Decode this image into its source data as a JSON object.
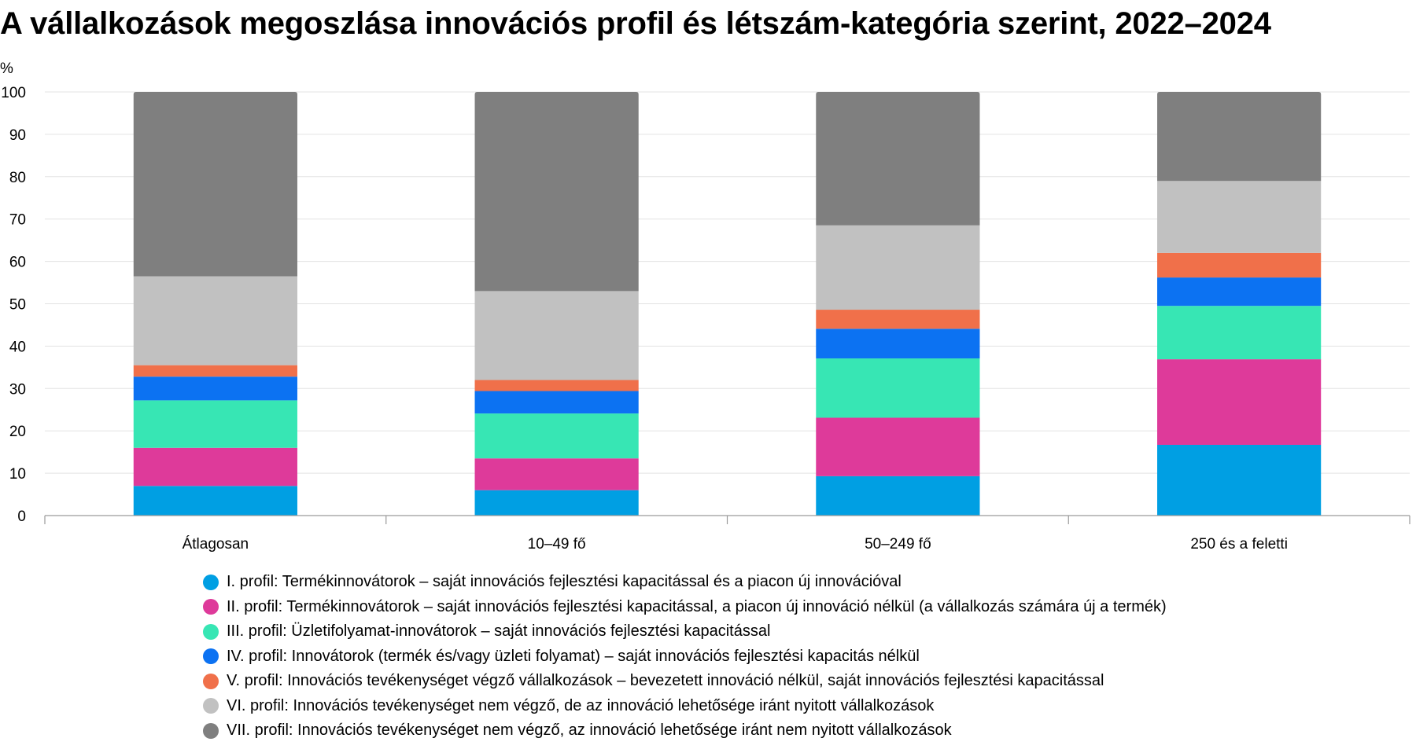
{
  "chart_data": {
    "type": "bar",
    "stacked": true,
    "title": "A vállalkozások megoszlása innovációs profil és létszám-kategória szerint, 2022–2024",
    "ylabel": "%",
    "xlabel": "",
    "ylim": [
      0,
      100
    ],
    "yticks": [
      "0",
      "10",
      "20",
      "30",
      "40",
      "50",
      "60",
      "70",
      "80",
      "90",
      "100"
    ],
    "grid": true,
    "legend_position": "bottom",
    "categories": [
      "Átlagosan",
      "10–49 fő",
      "50–249 fő",
      "250 és a feletti"
    ],
    "series": [
      {
        "name": "I. profil: Termékinnovátorok – saját innovációs fejlesztési kapacitással és a piacon új innovációval",
        "color": "#009fe3",
        "values": [
          7.0,
          6.0,
          9.3,
          16.7
        ]
      },
      {
        "name": "II. profil: Termékinnovátorok – saját innovációs fejlesztési kapacitással, a piacon új innováció nélkül (a vállalkozás számára új a termék)",
        "color": "#de3a9a",
        "values": [
          9.0,
          7.5,
          13.8,
          20.2
        ]
      },
      {
        "name": "III. profil: Üzletifolyamat-innovátorok – saját innovációs fejlesztési kapacitással",
        "color": "#37e6b4",
        "values": [
          11.2,
          10.6,
          14.0,
          12.6
        ]
      },
      {
        "name": "IV. profil: Innovátorok (termék és/vagy üzleti folyamat) – saját innovációs fejlesztési kapacitás nélkül",
        "color": "#0c72f2",
        "values": [
          5.6,
          5.3,
          7.0,
          6.7
        ]
      },
      {
        "name": "V. profil: Innovációs tevékenységet végző vállalkozások – bevezetett innováció nélkül, saját innovációs fejlesztési kapacitással",
        "color": "#f0704a",
        "values": [
          2.7,
          2.6,
          4.5,
          5.8
        ]
      },
      {
        "name": "VI. profil: Innovációs tevékenységet nem végző, de az innováció lehetősége iránt nyitott vállalkozások",
        "color": "#c1c1c1",
        "values": [
          21.0,
          21.0,
          19.9,
          17.0
        ]
      },
      {
        "name": "VII. profil: Innovációs tevékenységet nem végző, az innováció lehetősége iránt nem nyitott vállalkozások",
        "color": "#7f7f7f",
        "values": [
          43.5,
          47.0,
          31.5,
          21.0
        ]
      }
    ]
  }
}
